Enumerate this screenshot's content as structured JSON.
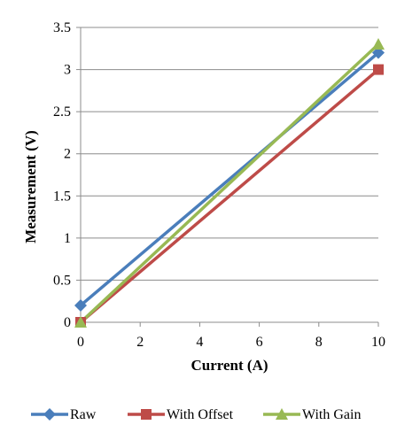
{
  "chart_data": {
    "type": "line",
    "title": "",
    "xlabel": "Current (A)",
    "ylabel": "Measurement (V)",
    "xlim": [
      0,
      10
    ],
    "ylim": [
      0,
      3.5
    ],
    "x_ticks": [
      "0",
      "2",
      "4",
      "6",
      "8",
      "10"
    ],
    "y_ticks": [
      "0",
      "0.5",
      "1",
      "1.5",
      "2",
      "2.5",
      "3",
      "3.5"
    ],
    "grid": "horizontal",
    "legend_position": "bottom",
    "series": [
      {
        "name": "Raw",
        "color": "#4a7ebb",
        "marker": "diamond",
        "points": [
          [
            0,
            0.2
          ],
          [
            10,
            3.2
          ]
        ]
      },
      {
        "name": "With Offset",
        "color": "#be4b48",
        "marker": "square",
        "points": [
          [
            0,
            0
          ],
          [
            10,
            3.0
          ]
        ]
      },
      {
        "name": "With Gain",
        "color": "#98b954",
        "marker": "triangle",
        "points": [
          [
            0,
            0
          ],
          [
            10,
            3.3
          ]
        ]
      }
    ]
  }
}
